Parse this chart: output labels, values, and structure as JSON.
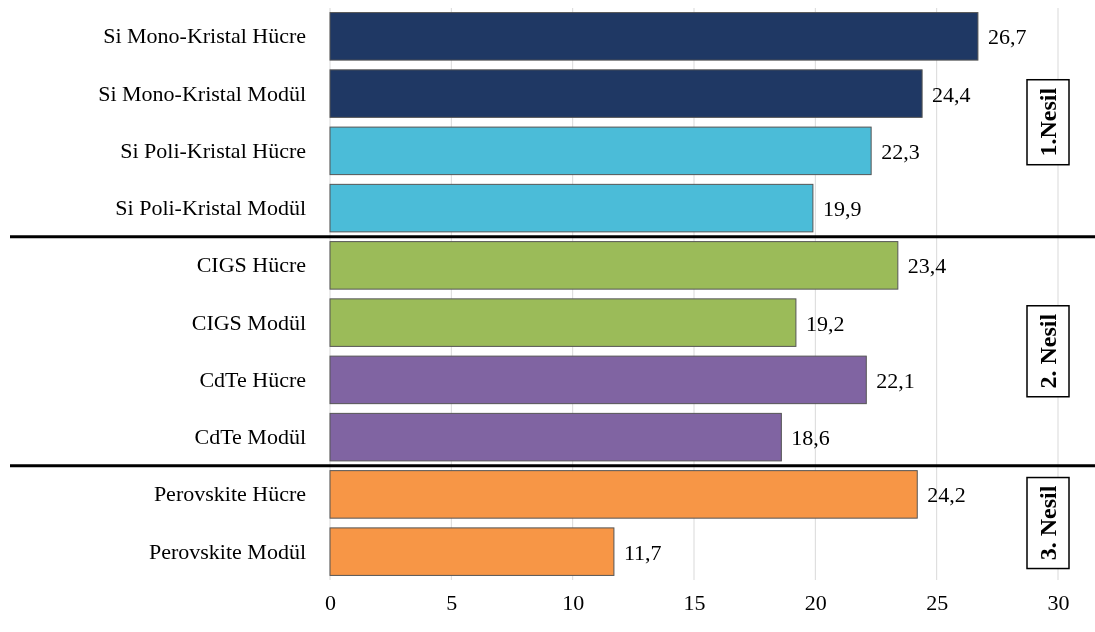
{
  "chart_data": {
    "type": "bar",
    "orientation": "horizontal",
    "categories": [
      "Si Mono-Kristal Hücre",
      "Si Mono-Kristal Modül",
      "Si Poli-Kristal Hücre",
      "Si Poli-Kristal Modül",
      "CIGS Hücre",
      "CIGS Modül",
      "CdTe Hücre",
      "CdTe Modül",
      "Perovskite Hücre",
      "Perovskite Modül"
    ],
    "values": [
      26.7,
      24.4,
      22.3,
      19.9,
      23.4,
      19.2,
      22.1,
      18.6,
      24.2,
      11.7
    ],
    "value_labels": [
      "26,7",
      "24,4",
      "22,3",
      "19,9",
      "23,4",
      "19,2",
      "22,1",
      "18,6",
      "24,2",
      "11,7"
    ],
    "colors": [
      "#1f3864",
      "#1f3864",
      "#4bbcd8",
      "#4bbcd8",
      "#9bbb59",
      "#9bbb59",
      "#8064a2",
      "#8064a2",
      "#f79646",
      "#f79646"
    ],
    "xlim": [
      0,
      30
    ],
    "xticks": [
      0,
      5,
      10,
      15,
      20,
      25,
      30
    ],
    "grid": "x",
    "annotations": [
      "1.Nesil",
      "2. Nesil",
      "3. Nesil"
    ]
  }
}
